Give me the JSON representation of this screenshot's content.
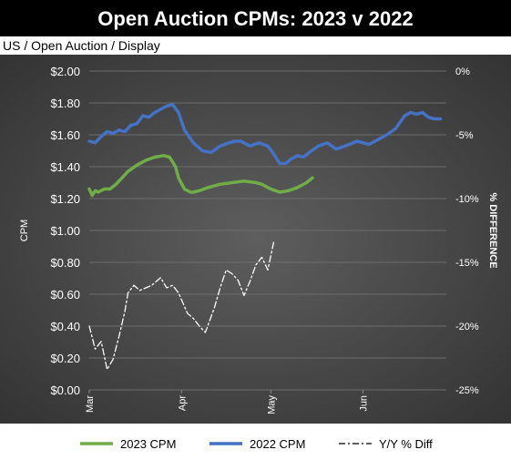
{
  "chart_data": {
    "type": "line",
    "title": "Open Auction CPMs: 2023 v 2022",
    "subtitle": "US / Open Auction / Display",
    "ylabel": "CPM",
    "y2label": "% DIFFERENCE",
    "ylim": [
      0,
      2.0
    ],
    "y2lim": [
      -25,
      0
    ],
    "y_ticks": [
      "$0.00",
      "$0.20",
      "$0.40",
      "$0.60",
      "$0.80",
      "$1.00",
      "$1.20",
      "$1.40",
      "$1.60",
      "$1.80",
      "$2.00"
    ],
    "y2_ticks": [
      "-25%",
      "-20%",
      "-15%",
      "-10%",
      "-5%",
      "0%"
    ],
    "x_ticks": [
      {
        "label": "Mar",
        "day": 0
      },
      {
        "label": "Apr",
        "day": 31
      },
      {
        "label": "May",
        "day": 61
      },
      {
        "label": "Jun",
        "day": 92
      }
    ],
    "xlim_days": [
      0,
      120
    ],
    "grid": true,
    "legend_position": "bottom",
    "series": [
      {
        "name": "2023 CPM",
        "axis": "left",
        "color": "#70ad47",
        "style": "solid",
        "x_days": [
          0,
          1,
          2,
          3,
          5,
          7,
          9,
          11,
          13,
          16,
          19,
          22,
          25,
          27,
          29,
          30,
          32,
          34,
          35,
          37,
          40,
          44,
          48,
          52,
          56,
          58,
          61,
          64,
          67,
          70,
          73,
          75
        ],
        "values": [
          1.26,
          1.22,
          1.25,
          1.24,
          1.26,
          1.26,
          1.29,
          1.33,
          1.37,
          1.41,
          1.44,
          1.46,
          1.47,
          1.46,
          1.4,
          1.33,
          1.26,
          1.24,
          1.24,
          1.25,
          1.27,
          1.29,
          1.3,
          1.31,
          1.3,
          1.29,
          1.26,
          1.24,
          1.25,
          1.27,
          1.3,
          1.33
        ]
      },
      {
        "name": "2022 CPM",
        "axis": "left",
        "color": "#4472c4",
        "style": "solid",
        "x_days": [
          0,
          2,
          4,
          6,
          8,
          10,
          12,
          14,
          16,
          18,
          20,
          22,
          24,
          26,
          28,
          30,
          32,
          35,
          38,
          41,
          44,
          47,
          49,
          51,
          54,
          57,
          60,
          62,
          64,
          66,
          68,
          70,
          72,
          74,
          77,
          80,
          83,
          86,
          90,
          94,
          97,
          100,
          103,
          106,
          108,
          110,
          112,
          114,
          116,
          118
        ],
        "values": [
          1.56,
          1.55,
          1.59,
          1.62,
          1.61,
          1.63,
          1.62,
          1.66,
          1.67,
          1.72,
          1.71,
          1.74,
          1.76,
          1.78,
          1.79,
          1.74,
          1.63,
          1.55,
          1.5,
          1.49,
          1.53,
          1.55,
          1.56,
          1.56,
          1.53,
          1.55,
          1.53,
          1.48,
          1.42,
          1.42,
          1.45,
          1.47,
          1.46,
          1.49,
          1.53,
          1.55,
          1.51,
          1.53,
          1.56,
          1.54,
          1.57,
          1.6,
          1.64,
          1.72,
          1.74,
          1.73,
          1.74,
          1.71,
          1.7,
          1.7
        ]
      },
      {
        "name": "Y/Y % Diff",
        "axis": "right",
        "color": "#ffffff",
        "style": "dashdot",
        "x_days": [
          0,
          2,
          4,
          6,
          8,
          10,
          12,
          13,
          15,
          17,
          19,
          21,
          24,
          26,
          28,
          30,
          33,
          35,
          37,
          39,
          42,
          44,
          46,
          48,
          50,
          52,
          54,
          56,
          58,
          60,
          62
        ],
        "values": [
          -20.0,
          -21.8,
          -21.2,
          -23.4,
          -22.6,
          -20.8,
          -18.8,
          -17.4,
          -16.8,
          -17.2,
          -17.0,
          -16.8,
          -16.2,
          -17.0,
          -16.8,
          -17.4,
          -19.0,
          -19.4,
          -20.0,
          -20.5,
          -18.6,
          -17.0,
          -15.6,
          -15.9,
          -16.4,
          -17.6,
          -16.5,
          -15.2,
          -14.6,
          -15.6,
          -13.4
        ]
      }
    ]
  }
}
